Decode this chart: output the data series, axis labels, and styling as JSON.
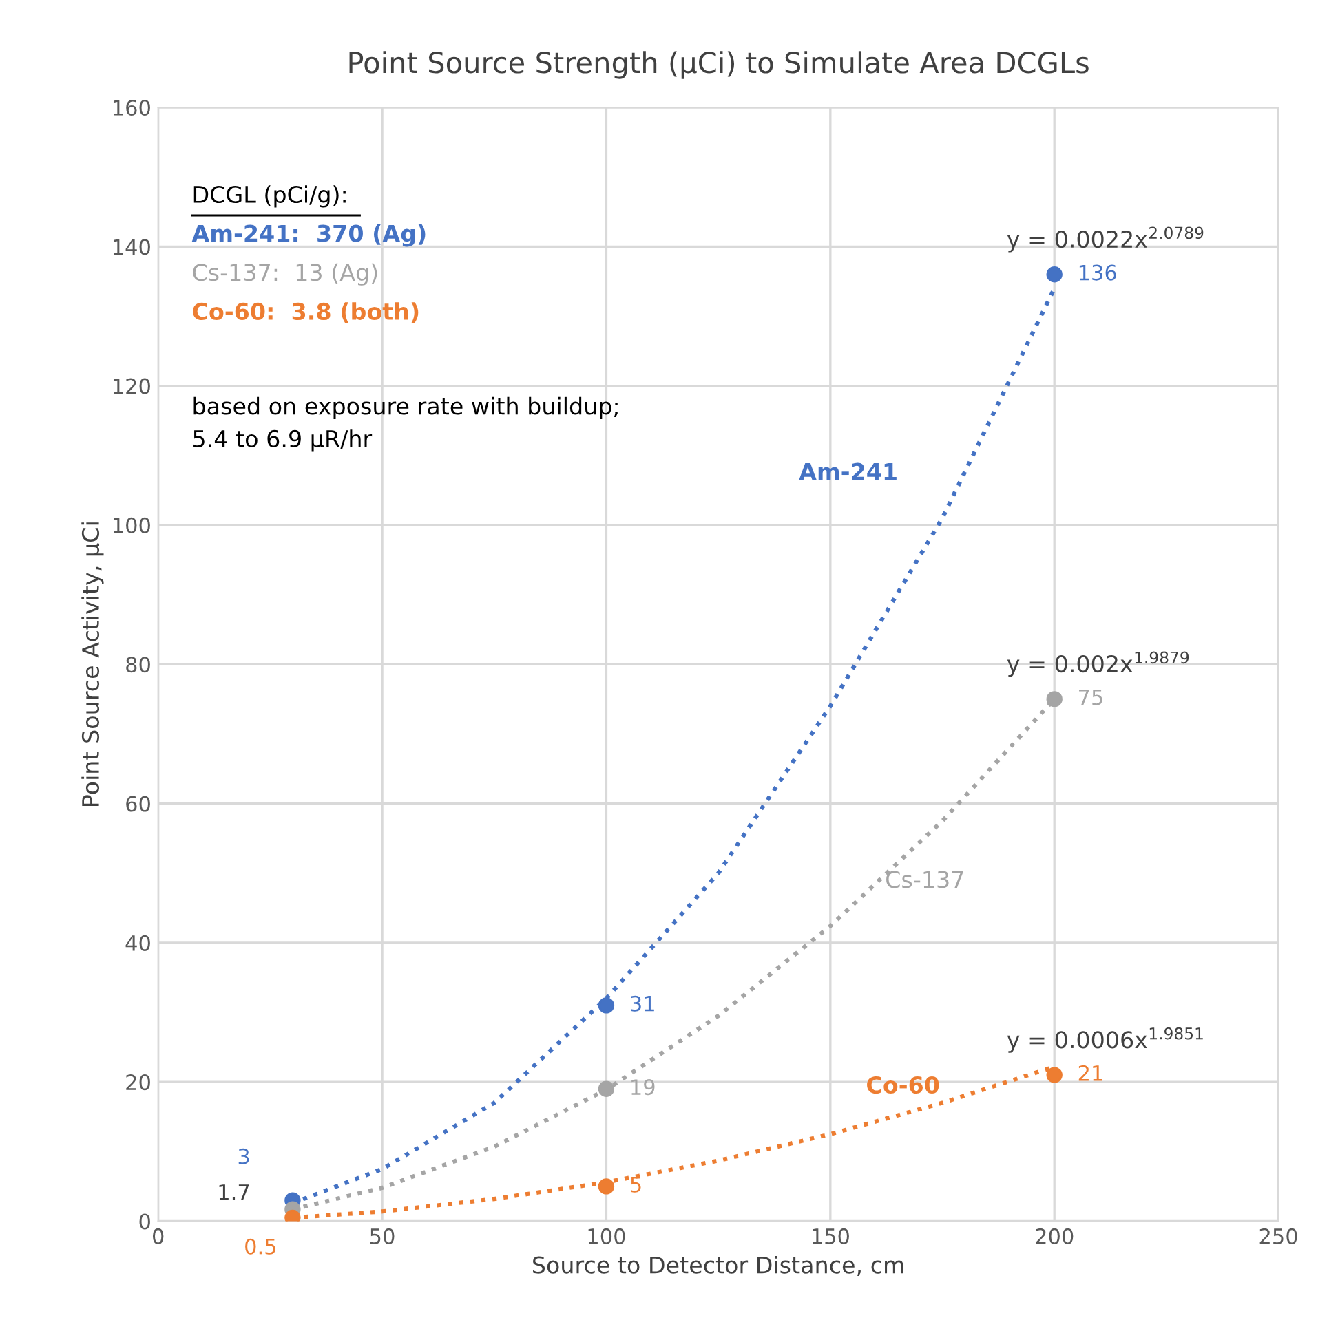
{
  "chart_data": {
    "type": "scatter",
    "title": "Point Source Strength (µCi) to Simulate Area DCGLs",
    "xlabel": "Source to Detector Distance, cm",
    "ylabel": "Point Source Activity, µCi",
    "xlim": [
      0,
      250
    ],
    "xticks": [
      0,
      50,
      100,
      150,
      200,
      250
    ],
    "ylim": [
      0,
      160
    ],
    "yticks": [
      0,
      20,
      40,
      60,
      80,
      100,
      120,
      140,
      160
    ],
    "grid": true,
    "legend": false,
    "marker": "circle",
    "series": [
      {
        "color": "#4472c4",
        "x": [
          30,
          100,
          200
        ],
        "values": [
          3,
          31,
          136
        ],
        "value_labels": [
          "3",
          "31",
          "136"
        ]
      },
      {
        "color": "#a5a5a5",
        "x": [
          30,
          100,
          200
        ],
        "values": [
          1.7,
          19,
          75
        ],
        "value_labels": [
          "1.7",
          "19",
          "75"
        ]
      },
      {
        "color": "#ed7d31",
        "x": [
          30,
          100,
          200
        ],
        "values": [
          0.5,
          5,
          21
        ],
        "value_labels": [
          "0.5",
          "5",
          "21"
        ]
      },
      {
        "type": "line",
        "name": "Am-241",
        "line_style": "dotted",
        "marker": "none",
        "color": "#4472c4",
        "x": [
          30,
          50,
          75,
          100,
          125,
          150,
          175,
          200
        ],
        "values": [
          2.6,
          7.5,
          17,
          32,
          50,
          74,
          101,
          134
        ]
      },
      {
        "type": "line",
        "name": "Cs-137",
        "line_style": "dotted",
        "marker": "none",
        "color": "#a5a5a5",
        "x": [
          30,
          50,
          75,
          100,
          125,
          150,
          175,
          200
        ],
        "values": [
          1.7,
          4.8,
          10.7,
          18.9,
          29.5,
          42.4,
          57.5,
          75
        ]
      },
      {
        "type": "line",
        "name": "Co-60",
        "line_style": "dotted",
        "marker": "none",
        "color": "#ed7d31",
        "x": [
          30,
          50,
          75,
          100,
          125,
          150,
          175,
          200
        ],
        "values": [
          0.5,
          1.4,
          3.2,
          5.6,
          8.7,
          12.5,
          17,
          22.2
        ]
      }
    ],
    "annotations": [
      "DCGL (pCi/g):",
      "Am-241:  370 (Ag)",
      "Cs-137:  13 (Ag)",
      "Co-60:  3.8 (both)",
      "based on exposure rate with buildup;\n5.4 to 6.9 µR/hr",
      "y = 0.0022x$^{2.0789}$",
      "y = 0.002x$^{1.9879}$",
      "y = 0.0006x$^{1.9851}$"
    ]
  }
}
